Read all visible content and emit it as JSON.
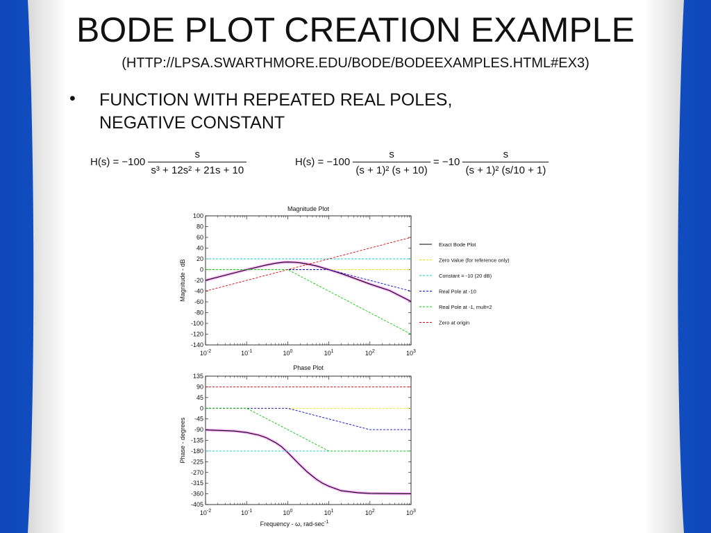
{
  "slide": {
    "title": "BODE PLOT CREATION EXAMPLE",
    "subtitle": "(HTTP://LPSA.SWARTHMORE.EDU/BODE/BODEEXAMPLES.HTML#EX3)",
    "bullet_marker": "•",
    "bullet_text": "FUNCTION WITH REPEATED REAL POLES, NEGATIVE CONSTANT"
  },
  "equations": {
    "eq1_lhs": "H(s) = −100",
    "eq1_num": "s",
    "eq1_den": "s³ + 12s² + 21s + 10",
    "eq2_lhs": "H(s) = −100",
    "eq2_num": "s",
    "eq2_den": "(s + 1)² (s + 10)",
    "eq3_lhs": "= −10",
    "eq3_num": "s",
    "eq3_den": "(s + 1)² (s/10 + 1)"
  },
  "colors": {
    "background": "#1565d8",
    "exact": "#000000",
    "exact_halo": "#ff66ff",
    "zero_value": "#e6e600",
    "constant": "#00cccc",
    "real_pole_10": "#0000cc",
    "real_pole_1": "#00cc00",
    "zero_origin": "#dd0000"
  },
  "chart_data": [
    {
      "type": "line",
      "title": "Magnitude Plot",
      "xlabel": "",
      "ylabel": "Magnitude - dB",
      "xscale": "log",
      "xlim": [
        0.01,
        1000
      ],
      "ylim": [
        -140,
        100
      ],
      "x_ticks": [
        "10-2",
        "10-1",
        "100",
        "101",
        "102",
        "103"
      ],
      "y_ticks": [
        100,
        80,
        60,
        40,
        20,
        0,
        -20,
        -40,
        -60,
        -80,
        -100,
        -120,
        -140
      ],
      "legend_position": "right",
      "series": [
        {
          "name": "Exact Bode Plot",
          "key": "exact",
          "x": [
            0.01,
            0.03,
            0.1,
            0.3,
            0.5,
            0.8,
            1,
            1.5,
            2,
            3,
            5,
            10,
            20,
            50,
            100,
            300,
            1000
          ],
          "y": [
            -20,
            -10.5,
            -0.1,
            8.5,
            11.9,
            13.8,
            14,
            13.5,
            12.6,
            10.5,
            6.9,
            0,
            -7.2,
            -18.3,
            -26.9,
            -38.9,
            -59.2
          ]
        },
        {
          "name": "Zero Value (for reference only)",
          "key": "zero_value",
          "x": [
            0.01,
            1000
          ],
          "y": [
            0,
            0
          ]
        },
        {
          "name": "Constant = -10 (20 dB)",
          "key": "constant",
          "x": [
            0.01,
            1000
          ],
          "y": [
            20,
            20
          ]
        },
        {
          "name": "Real Pole at -10",
          "key": "real_pole_10",
          "x": [
            0.01,
            10,
            1000
          ],
          "y": [
            0,
            0,
            -40
          ]
        },
        {
          "name": "Real Pole at -1, mult=2",
          "key": "real_pole_1",
          "x": [
            0.01,
            1,
            1000
          ],
          "y": [
            0,
            0,
            -120
          ]
        },
        {
          "name": "Zero at origin",
          "key": "zero_origin",
          "x": [
            0.01,
            1000
          ],
          "y": [
            -40,
            60
          ]
        }
      ]
    },
    {
      "type": "line",
      "title": "Phase Plot",
      "xlabel": "Frequency - ω, rad-sec-1",
      "ylabel": "Phase - degrees",
      "xscale": "log",
      "xlim": [
        0.01,
        1000
      ],
      "ylim": [
        -405,
        135
      ],
      "x_ticks": [
        "10-2",
        "10-1",
        "100",
        "101",
        "102",
        "103"
      ],
      "y_ticks": [
        135,
        90,
        45,
        0,
        -45,
        -90,
        -135,
        -180,
        -225,
        -270,
        -315,
        -360,
        -405
      ],
      "series": [
        {
          "name": "Exact Bode Plot",
          "key": "exact",
          "x": [
            0.01,
            0.05,
            0.1,
            0.2,
            0.3,
            0.5,
            0.7,
            1,
            1.5,
            2,
            3,
            5,
            7,
            10,
            20,
            50,
            100,
            300,
            1000
          ],
          "y": [
            -91,
            -96,
            -102,
            -113,
            -124,
            -144,
            -161,
            -186,
            -217,
            -239,
            -268,
            -299,
            -315,
            -328,
            -347,
            -355,
            -358,
            -359,
            -359.5
          ]
        },
        {
          "name": "Zero Value (for reference only)",
          "key": "zero_value",
          "x": [
            0.01,
            1000
          ],
          "y": [
            0,
            0
          ]
        },
        {
          "name": "Constant = -10 (20 dB)",
          "key": "constant",
          "x": [
            0.01,
            1000
          ],
          "y": [
            -180,
            -180
          ]
        },
        {
          "name": "Real Pole at -10",
          "key": "real_pole_10",
          "x": [
            0.01,
            1,
            100,
            1000
          ],
          "y": [
            0,
            0,
            -90,
            -90
          ]
        },
        {
          "name": "Real Pole at -1, mult=2",
          "key": "real_pole_1",
          "x": [
            0.01,
            0.1,
            10,
            1000
          ],
          "y": [
            0,
            0,
            -180,
            -180
          ]
        },
        {
          "name": "Zero at origin",
          "key": "zero_origin",
          "x": [
            0.01,
            1000
          ],
          "y": [
            90,
            90
          ]
        }
      ]
    }
  ]
}
